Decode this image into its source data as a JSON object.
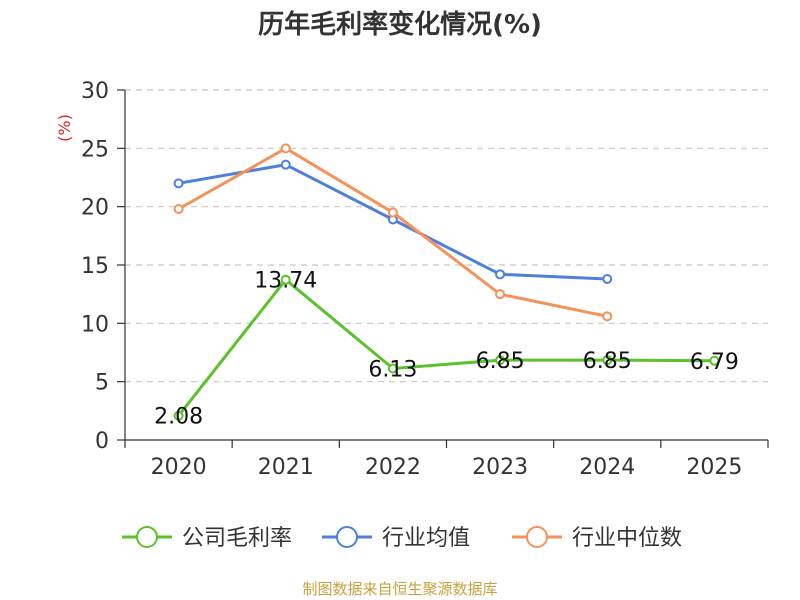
{
  "chart_data": {
    "type": "line",
    "title": "历年毛利率变化情况(%)",
    "ylabel": "(%)",
    "xlabel": "",
    "categories": [
      "2020",
      "2021",
      "2022",
      "2023",
      "2024",
      "2025"
    ],
    "ylim": [
      0,
      30
    ],
    "yticks": [
      0,
      5,
      10,
      15,
      20,
      25,
      30
    ],
    "grid": true,
    "legend_position": "bottom",
    "series": [
      {
        "name": "公司毛利率",
        "color": "#5cc22c",
        "values": [
          2.08,
          13.74,
          6.13,
          6.85,
          6.85,
          6.79
        ],
        "labels": [
          "2.08",
          "13.74",
          "6.13",
          "6.85",
          "6.85",
          "6.79"
        ]
      },
      {
        "name": "行业均值",
        "color": "#4e7fdb",
        "values": [
          22.0,
          23.6,
          18.9,
          14.2,
          13.8,
          null
        ]
      },
      {
        "name": "行业中位数",
        "color": "#f5915a",
        "values": [
          19.8,
          25.0,
          19.5,
          12.5,
          10.6,
          null
        ]
      }
    ]
  },
  "footer": {
    "source": "制图数据来自恒生聚源数据库"
  }
}
